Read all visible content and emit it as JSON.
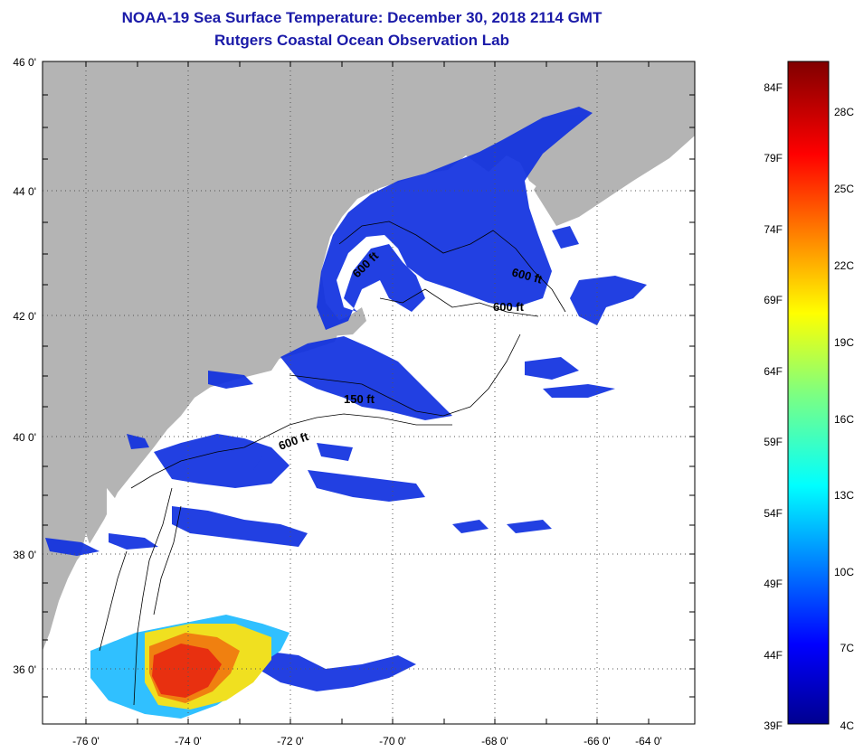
{
  "title": "NOAA-19 Sea Surface Temperature:  December 30, 2018 2114 GMT",
  "subtitle": "Rutgers Coastal Ocean Observation Lab",
  "lat_labels": [
    "46 0'",
    "44 0'",
    "42 0'",
    "40 0'",
    "38 0'",
    "36 0'"
  ],
  "lon_labels": [
    "-76 0'",
    "-74 0'",
    "-72 0'",
    "-70 0'",
    "-68 0'",
    "-66 0'",
    "-64 0'"
  ],
  "contour_labels": [
    "600 ft",
    "600 ft",
    "600 ft",
    "150 ft",
    "600 ft"
  ],
  "colorbar": {
    "fahrenheit": [
      "84F",
      "79F",
      "74F",
      "69F",
      "64F",
      "59F",
      "54F",
      "49F",
      "44F",
      "39F"
    ],
    "celsius": [
      "28C",
      "25C",
      "22C",
      "19C",
      "16C",
      "13C",
      "10C",
      "7C",
      "4C"
    ]
  },
  "colors": {
    "title": "#1a1aa8",
    "land": "#b4b4b4",
    "cold": "#1030e0",
    "warm": "#e83010"
  }
}
